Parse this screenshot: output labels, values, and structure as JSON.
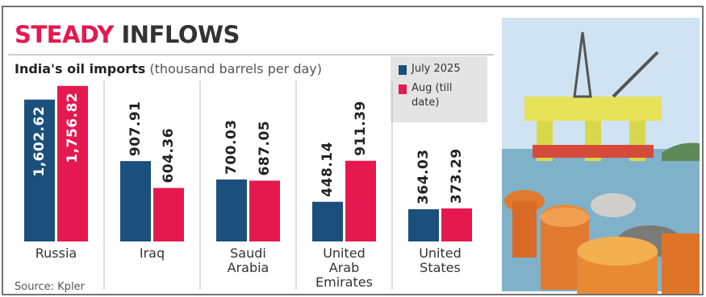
{
  "chart_data": {
    "type": "bar",
    "title": [
      "STEADY",
      "INFLOWS"
    ],
    "subtitle": "India's oil imports",
    "unit": "(thousand barrels per day)",
    "categories": [
      "Russia",
      "Iraq",
      "Saudi Arabia",
      "United Arab Emirates",
      "United States"
    ],
    "series": [
      {
        "name": "July 2025",
        "color": "#1c4f7c",
        "values": [
          1602.62,
          907.91,
          700.03,
          448.14,
          364.03
        ],
        "value_labels": [
          "1,602.62",
          "907.91",
          "700.03",
          "448.14",
          "364.03"
        ]
      },
      {
        "name": "Aug (till date)",
        "color": "#e5194f",
        "values": [
          1756.82,
          604.36,
          687.05,
          911.39,
          373.29
        ],
        "value_labels": [
          "1,756.82",
          "604.36",
          "687.05",
          "911.39",
          "373.29"
        ]
      }
    ],
    "source": "Source: Kpler"
  }
}
